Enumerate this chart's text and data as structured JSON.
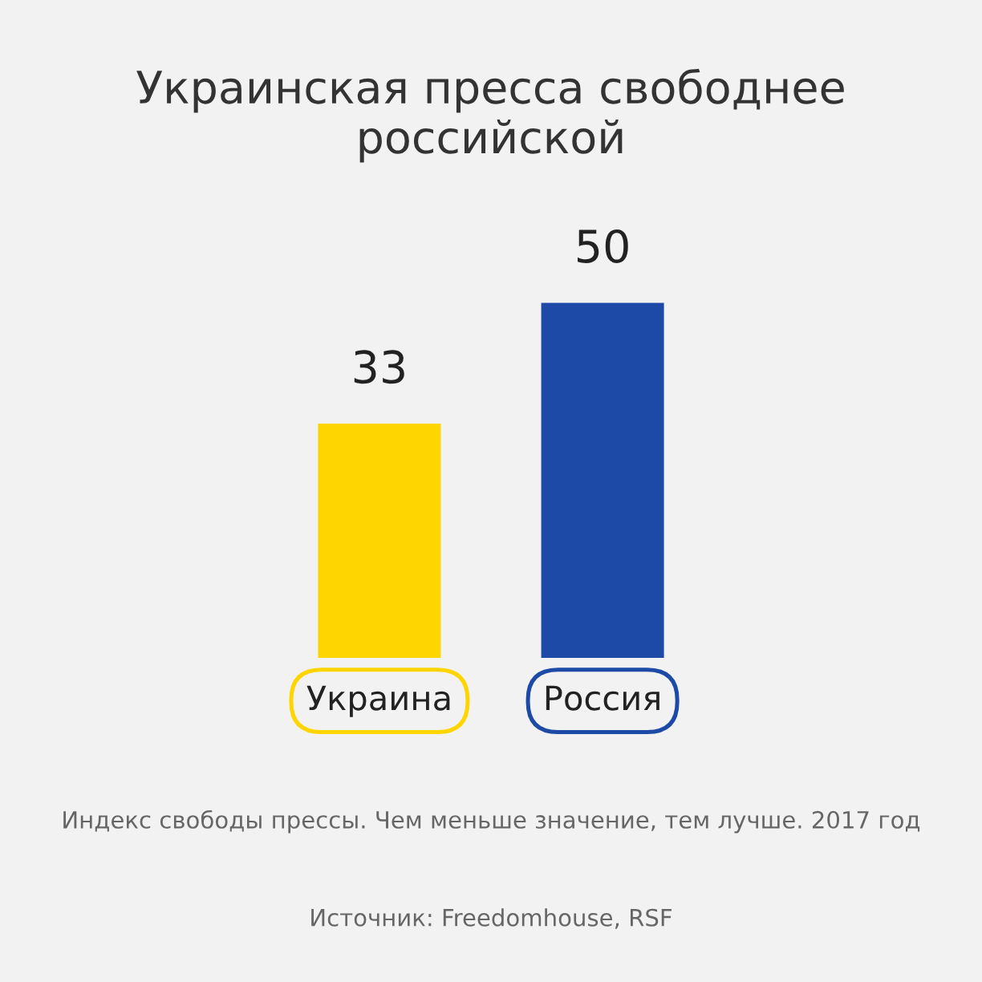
{
  "chart_data": {
    "type": "bar",
    "title": "Украинская пресса свободнее российской",
    "categories": [
      "Украина",
      "Россия"
    ],
    "values": [
      33,
      50
    ],
    "colors": [
      "#ffd500",
      "#1c4aa6"
    ],
    "data_labels": true,
    "grid": false,
    "legend": false,
    "annotations": [
      "Индекс свободы прессы. Чем меньше значение, тем лучше. 2017 год",
      "Источник: Freedomhouse, RSF"
    ]
  }
}
